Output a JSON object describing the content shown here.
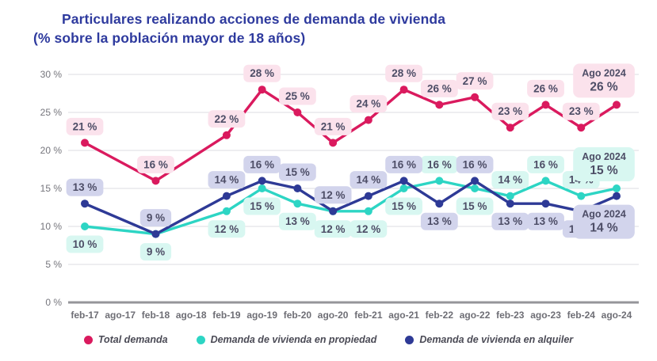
{
  "title": {
    "line1": "Particulares realizando acciones de demanda de vivienda",
    "line2": "(% sobre la población mayor de 18 años)"
  },
  "colors": {
    "title_blue": "#2E3A9E",
    "label_text": "#4D4D66",
    "axis_text": "#75757C",
    "gridline": "#E4E4E7",
    "zero_line": "#95959A",
    "background": "#FFFFFF"
  },
  "chart_data": {
    "type": "line",
    "title": "Particulares realizando acciones de demanda de vivienda (% sobre la población mayor de 18 años)",
    "categories": [
      "feb-17",
      "ago-17",
      "feb-18",
      "ago-18",
      "feb-19",
      "ago-19",
      "feb-20",
      "ago-20",
      "feb-21",
      "ago-21",
      "feb-22",
      "ago-22",
      "feb-23",
      "ago-23",
      "feb-24",
      "ago-24"
    ],
    "ylim": [
      0,
      30
    ],
    "ytick_values": [
      0,
      5,
      10,
      15,
      20,
      25,
      30
    ],
    "ytick_labels": [
      "0 %",
      "5 %",
      "10 %",
      "15 %",
      "20 %",
      "25 %",
      "30 %"
    ],
    "grid": true,
    "legend_position": "bottom",
    "series": [
      {
        "name": "Total demanda",
        "color": "#DA1A5E",
        "label_bg": "#FBE2EC",
        "values": [
          21,
          null,
          16,
          null,
          22,
          28,
          25,
          21,
          24,
          28,
          26,
          27,
          23,
          26,
          23,
          26
        ],
        "label_side": [
          "above",
          null,
          "above",
          null,
          "above",
          "above",
          "above",
          "above",
          "above",
          "above",
          "above",
          "above",
          "above",
          "above",
          "above",
          "above"
        ],
        "final_annotation": {
          "title": "Ago 2024",
          "value_label": "26 %",
          "side": "above"
        }
      },
      {
        "name": "Demanda de vivienda en propiedad",
        "color": "#2DD5C4",
        "label_bg": "#D8F7F1",
        "values": [
          10,
          null,
          9,
          null,
          12,
          15,
          13,
          12,
          12,
          15,
          16,
          15,
          14,
          16,
          14,
          15
        ],
        "label_side": [
          "below",
          null,
          "below",
          null,
          "below",
          "below",
          "below",
          "below",
          "below",
          "below",
          "above",
          "below",
          "above",
          "above",
          "above",
          "above"
        ],
        "final_annotation": {
          "title": "Ago 2024",
          "value_label": "15 %",
          "side": "above"
        }
      },
      {
        "name": "Demanda de vivienda en alquiler",
        "color": "#2E3A96",
        "label_bg": "#D2D4EC",
        "values": [
          13,
          null,
          9,
          null,
          14,
          16,
          15,
          12,
          14,
          16,
          13,
          16,
          13,
          13,
          12,
          14
        ],
        "label_side": [
          "above",
          null,
          "above",
          null,
          "above",
          "above",
          "above",
          "above",
          "above",
          "above",
          "below",
          "above",
          "below",
          "below",
          "below",
          "below"
        ],
        "final_annotation": {
          "title": "Ago 2024",
          "value_label": "14 %",
          "side": "below"
        }
      }
    ]
  }
}
